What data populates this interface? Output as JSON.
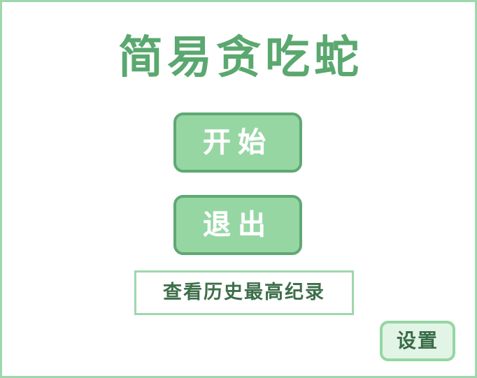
{
  "game": {
    "title": "简易贪吃蛇"
  },
  "menu": {
    "start_label": "开始",
    "exit_label": "退出",
    "history_label": "查看历史最高纪录",
    "settings_label": "设置"
  },
  "colors": {
    "title": "#5aa86f",
    "button_fill": "#95d6a3",
    "button_border": "#5fa874",
    "frame_border": "#9fd7ad",
    "settings_fill": "#e2f4e5"
  }
}
